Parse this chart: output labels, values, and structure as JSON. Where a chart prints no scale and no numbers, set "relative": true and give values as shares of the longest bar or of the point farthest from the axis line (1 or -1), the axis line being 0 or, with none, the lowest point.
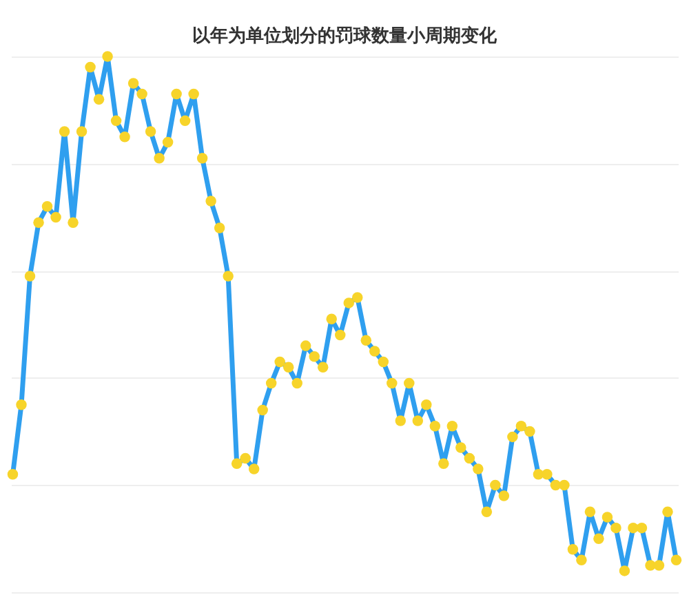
{
  "chart_data": {
    "type": "line",
    "title": "以年为单位划分的罚球数量小周期变化",
    "relative": true,
    "grid": "y",
    "marker": "circle",
    "line_style": "solid",
    "tick_labels": false,
    "categories": [
      null,
      null,
      null,
      null,
      null,
      null,
      null,
      null,
      null,
      null,
      null,
      null,
      null,
      null,
      null,
      null,
      null,
      null,
      null,
      null,
      null,
      null,
      null,
      null,
      null,
      null,
      null,
      null,
      null,
      null,
      null,
      null,
      null,
      null,
      null,
      null,
      null,
      null,
      null,
      null,
      null,
      null,
      null,
      null,
      null,
      null,
      null,
      null,
      null,
      null,
      null,
      null,
      null,
      null,
      null,
      null,
      null,
      null,
      null,
      null,
      null,
      null,
      null,
      null,
      null,
      null,
      null,
      null,
      null,
      null,
      null,
      null,
      null,
      null,
      null,
      null,
      null,
      null
    ],
    "series": [
      {
        "color": "#2f9fef",
        "colors": [
          "#f7d42a",
          "#f7d42a",
          "#f7d42a",
          "#f7d42a",
          "#f7d42a",
          "#f7d42a",
          "#f7d42a",
          "#f7d42a",
          "#f7d42a",
          "#f7d42a",
          "#f7d42a",
          "#f7d42a",
          "#f7d42a",
          "#f7d42a",
          "#f7d42a",
          "#f7d42a",
          "#f7d42a",
          "#f7d42a",
          "#f7d42a",
          "#f7d42a",
          "#f7d42a",
          "#f7d42a",
          "#f7d42a",
          "#f7d42a",
          "#f7d42a",
          "#f7d42a",
          "#f7d42a",
          "#f7d42a",
          "#f7d42a",
          "#f7d42a",
          "#f7d42a",
          "#f7d42a",
          "#f7d42a",
          "#f7d42a",
          "#f7d42a",
          "#f7d42a",
          "#f7d42a",
          "#f7d42a",
          "#f7d42a",
          "#f7d42a",
          "#f7d42a",
          "#f7d42a",
          "#f7d42a",
          "#f7d42a",
          "#f7d42a",
          "#f7d42a",
          "#f7d42a",
          "#f7d42a",
          "#f7d42a",
          "#f7d42a",
          "#f7d42a",
          "#f7d42a",
          "#f7d42a",
          "#f7d42a",
          "#f7d42a",
          "#f7d42a",
          "#f7d42a",
          "#f7d42a",
          "#f7d42a",
          "#f7d42a",
          "#f7d42a",
          "#f7d42a",
          "#f7d42a",
          "#f7d42a",
          "#f7d42a",
          "#f7d42a",
          "#f7d42a",
          "#f7d42a",
          "#f7d42a",
          "#f7d42a",
          "#f7d42a",
          "#f7d42a",
          "#f7d42a",
          "#f7d42a",
          "#f7d42a",
          "#f7d42a",
          "#f7d42a",
          "#f7d42a"
        ],
        "values": [
          0.22,
          0.35,
          0.59,
          0.69,
          0.72,
          0.7,
          0.86,
          0.69,
          0.86,
          0.98,
          0.92,
          1,
          0.88,
          0.85,
          0.95,
          0.93,
          0.86,
          0.81,
          0.84,
          0.93,
          0.88,
          0.93,
          0.81,
          0.73,
          0.68,
          0.59,
          0.24,
          0.25,
          0.23,
          0.34,
          0.39,
          0.43,
          0.42,
          0.39,
          0.46,
          0.44,
          0.42,
          0.51,
          0.48,
          0.54,
          0.55,
          0.47,
          0.45,
          0.43,
          0.39,
          0.32,
          0.39,
          0.32,
          0.35,
          0.31,
          0.24,
          0.31,
          0.27,
          0.25,
          0.23,
          0.15,
          0.2,
          0.18,
          0.29,
          0.31,
          0.3,
          0.22,
          0.22,
          0.2,
          0.2,
          0.08,
          0.06,
          0.15,
          0.1,
          0.14,
          0.12,
          0.04,
          0.12,
          0.12,
          0.05,
          0.05,
          0.15,
          0.06
        ]
      }
    ]
  }
}
